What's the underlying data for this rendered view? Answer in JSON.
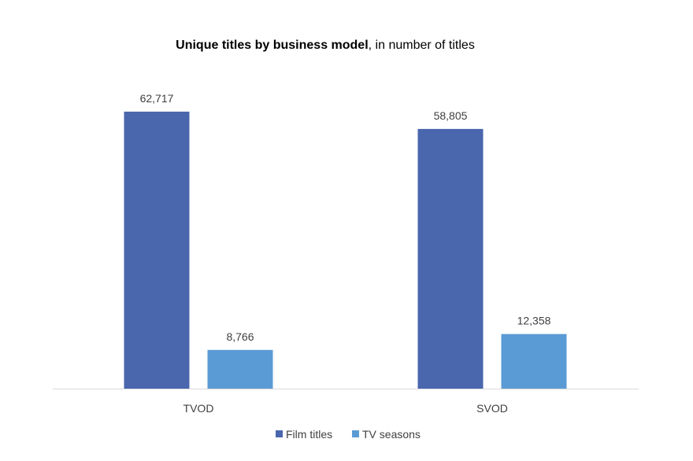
{
  "chart_data": {
    "type": "bar",
    "title_bold": "Unique titles by business model",
    "title_rest": ", in number of titles",
    "categories": [
      "TVOD",
      "SVOD"
    ],
    "series": [
      {
        "name": "Film titles",
        "values": [
          62717,
          58805
        ],
        "labels": [
          "62,717",
          "58,805"
        ],
        "color": "#4a66ad"
      },
      {
        "name": "TV seasons",
        "values": [
          8766,
          12358
        ],
        "labels": [
          "8,766",
          "12,358"
        ],
        "color": "#5b9bd5"
      }
    ],
    "ylim": [
      0,
      70000
    ],
    "grid": false,
    "legend_position": "bottom"
  }
}
